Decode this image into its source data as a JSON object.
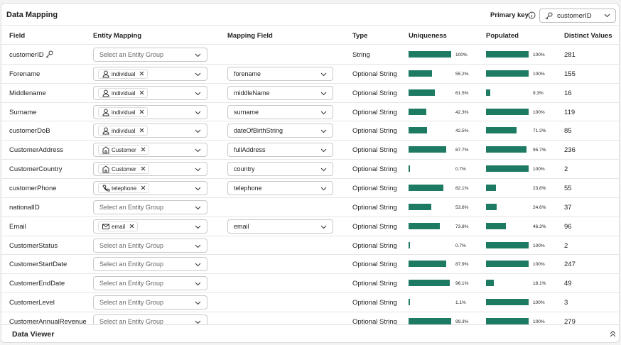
{
  "header": {
    "title": "Data Mapping",
    "primary_key_label": "Primary key",
    "primary_key_value": "customerID"
  },
  "table": {
    "columns": [
      "Field",
      "Entity Mapping",
      "Mapping Field",
      "Type",
      "Uniqueness",
      "Populated",
      "Distinct Values"
    ],
    "rows": [
      {
        "field": "customerID",
        "primary_key": true,
        "entity_mapping": {
          "placeholder": "Select an Entity Group"
        },
        "type": "String",
        "uniqueness": {
          "value": 100,
          "label": "100%"
        },
        "populated": {
          "value": 100,
          "label": "100%"
        },
        "distinct_values": 281
      },
      {
        "field": "Forename",
        "entity_mapping": {
          "icon": "person",
          "label": "individual"
        },
        "mapping_field": "forename",
        "type": "Optional String",
        "uniqueness": {
          "value": 55.2,
          "label": "55.2%"
        },
        "populated": {
          "value": 100,
          "label": "100%"
        },
        "distinct_values": 155
      },
      {
        "field": "Middlename",
        "entity_mapping": {
          "icon": "person",
          "label": "individual"
        },
        "mapping_field": "middleName",
        "type": "Optional String",
        "uniqueness": {
          "value": 61.5,
          "label": "61.5%"
        },
        "populated": {
          "value": 9.3,
          "label": "9.3%"
        },
        "distinct_values": 16
      },
      {
        "field": "Surname",
        "entity_mapping": {
          "icon": "person",
          "label": "individual"
        },
        "mapping_field": "surname",
        "type": "Optional String",
        "uniqueness": {
          "value": 42.3,
          "label": "42.3%"
        },
        "populated": {
          "value": 100,
          "label": "100%"
        },
        "distinct_values": 119
      },
      {
        "field": "customerDoB",
        "entity_mapping": {
          "icon": "person",
          "label": "individual"
        },
        "mapping_field": "dateOfBirthString",
        "type": "Optional String",
        "uniqueness": {
          "value": 42.5,
          "label": "42.5%"
        },
        "populated": {
          "value": 71.2,
          "label": "71.2%"
        },
        "distinct_values": 85
      },
      {
        "field": "CustomerAddress",
        "entity_mapping": {
          "icon": "building",
          "label": "Customer"
        },
        "mapping_field": "fullAddress",
        "type": "Optional String",
        "uniqueness": {
          "value": 87.7,
          "label": "87.7%"
        },
        "populated": {
          "value": 95.7,
          "label": "95.7%"
        },
        "distinct_values": 236
      },
      {
        "field": "CustomerCountry",
        "entity_mapping": {
          "icon": "building",
          "label": "Customer"
        },
        "mapping_field": "country",
        "type": "Optional String",
        "uniqueness": {
          "value": 0.7,
          "label": "0.7%"
        },
        "populated": {
          "value": 100,
          "label": "100%"
        },
        "distinct_values": 2
      },
      {
        "field": "customerPhone",
        "entity_mapping": {
          "icon": "phone",
          "label": "telephone"
        },
        "mapping_field": "telephone",
        "type": "Optional String",
        "uniqueness": {
          "value": 82.1,
          "label": "82.1%"
        },
        "populated": {
          "value": 23.8,
          "label": "23.8%"
        },
        "distinct_values": 55
      },
      {
        "field": "nationalID",
        "entity_mapping": {
          "placeholder": "Select an Entity Group"
        },
        "type": "Optional String",
        "uniqueness": {
          "value": 53.6,
          "label": "53.6%"
        },
        "populated": {
          "value": 24.6,
          "label": "24.6%"
        },
        "distinct_values": 37
      },
      {
        "field": "Email",
        "entity_mapping": {
          "icon": "mail",
          "label": "email"
        },
        "mapping_field": "email",
        "type": "Optional String",
        "uniqueness": {
          "value": 73.8,
          "label": "73.8%"
        },
        "populated": {
          "value": 46.3,
          "label": "46.3%"
        },
        "distinct_values": 96
      },
      {
        "field": "CustomerStatus",
        "entity_mapping": {
          "placeholder": "Select an Entity Group"
        },
        "type": "Optional String",
        "uniqueness": {
          "value": 0.7,
          "label": "0.7%"
        },
        "populated": {
          "value": 100,
          "label": "100%"
        },
        "distinct_values": 2
      },
      {
        "field": "CustomerStartDate",
        "entity_mapping": {
          "placeholder": "Select an Entity Group"
        },
        "type": "Optional String",
        "uniqueness": {
          "value": 87.9,
          "label": "87.9%"
        },
        "populated": {
          "value": 100,
          "label": "100%"
        },
        "distinct_values": 247
      },
      {
        "field": "CustomerEndDate",
        "entity_mapping": {
          "placeholder": "Select an Entity Group"
        },
        "type": "Optional String",
        "uniqueness": {
          "value": 96.1,
          "label": "96.1%"
        },
        "populated": {
          "value": 18.1,
          "label": "18.1%"
        },
        "distinct_values": 49
      },
      {
        "field": "CustomerLevel",
        "entity_mapping": {
          "placeholder": "Select an Entity Group"
        },
        "type": "Optional String",
        "uniqueness": {
          "value": 1.1,
          "label": "1.1%"
        },
        "populated": {
          "value": 100,
          "label": "100%"
        },
        "distinct_values": 3
      },
      {
        "field": "CustomerAnnualRevenue",
        "entity_mapping": {
          "placeholder": "Select an Entity Group"
        },
        "type": "Optional String",
        "uniqueness": {
          "value": 99.3,
          "label": "99.3%"
        },
        "populated": {
          "value": 100,
          "label": "100%"
        },
        "distinct_values": 279
      }
    ]
  },
  "footer": {
    "title": "Data Viewer"
  }
}
